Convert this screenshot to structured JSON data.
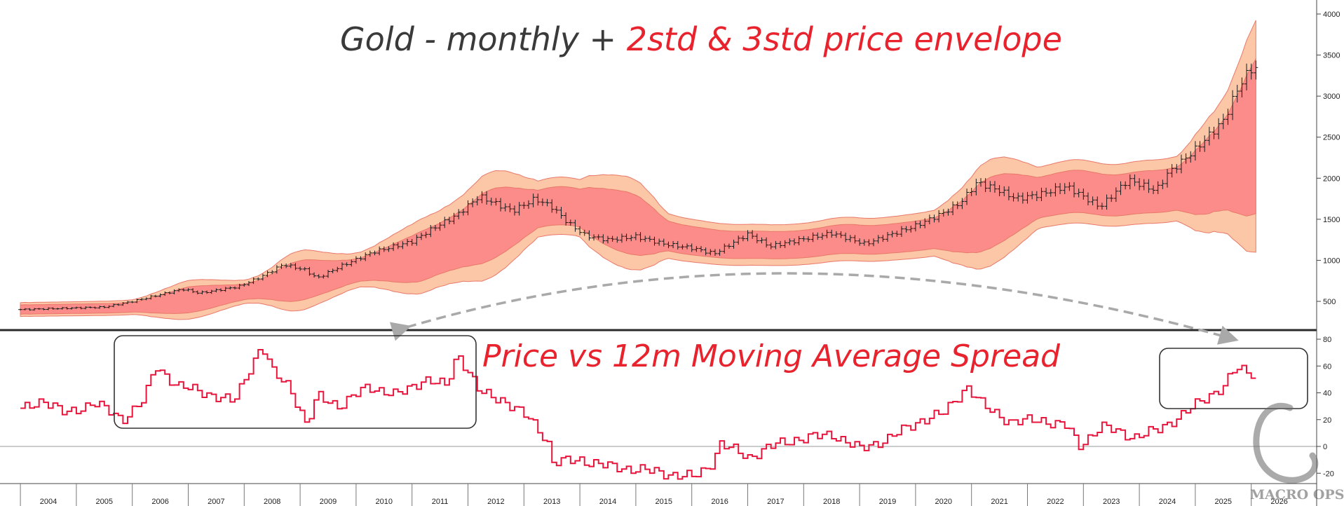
{
  "top_title": {
    "part1": "Gold - monthly + ",
    "part2": "2std & 3std price envelope"
  },
  "bottom_title": "Price vs 12m Moving Average Spread",
  "watermark": "MACRO OPS",
  "colors": {
    "title_dark": "#3a3a3a",
    "title_red": "#e8232e",
    "band_3std": "#fcc7a6",
    "band_2std": "#fb8c89",
    "band_edge": "#e9786a",
    "price_bars": "#1a1a1a",
    "spread_line": "#e8143c",
    "boxes": "#333333",
    "arrow": "#a9a9a9"
  },
  "chart_data": [
    {
      "type": "line",
      "subtype": "ohlc-monthly-with-envelopes",
      "title": "Gold - monthly + 2std & 3std price envelope",
      "x_axis_years": [
        "2004",
        "2005",
        "2006",
        "2007",
        "2008",
        "2009",
        "2010",
        "2011",
        "2012",
        "2013",
        "2014",
        "2015",
        "2016",
        "2017",
        "2018",
        "2019",
        "2020",
        "2021",
        "2022",
        "2023",
        "2024",
        "2025",
        "2026"
      ],
      "y_ticks": [
        500,
        1000,
        1500,
        2000,
        2500,
        3000,
        3500,
        4000
      ],
      "ylim": [
        200,
        4100
      ],
      "grid": false,
      "price_keypoints": [
        {
          "x": 2003.5,
          "y": 400
        },
        {
          "x": 2005.0,
          "y": 430
        },
        {
          "x": 2005.5,
          "y": 500
        },
        {
          "x": 2006.4,
          "y": 650
        },
        {
          "x": 2006.7,
          "y": 600
        },
        {
          "x": 2007.4,
          "y": 680
        },
        {
          "x": 2007.8,
          "y": 800
        },
        {
          "x": 2008.2,
          "y": 950
        },
        {
          "x": 2008.6,
          "y": 880
        },
        {
          "x": 2008.8,
          "y": 780
        },
        {
          "x": 2009.2,
          "y": 920
        },
        {
          "x": 2009.8,
          "y": 1100
        },
        {
          "x": 2010.5,
          "y": 1230
        },
        {
          "x": 2010.9,
          "y": 1400
        },
        {
          "x": 2011.3,
          "y": 1550
        },
        {
          "x": 2011.7,
          "y": 1780
        },
        {
          "x": 2012.3,
          "y": 1600
        },
        {
          "x": 2012.7,
          "y": 1750
        },
        {
          "x": 2013.0,
          "y": 1650
        },
        {
          "x": 2013.3,
          "y": 1450
        },
        {
          "x": 2013.6,
          "y": 1300
        },
        {
          "x": 2014.0,
          "y": 1250
        },
        {
          "x": 2014.5,
          "y": 1290
        },
        {
          "x": 2015.0,
          "y": 1200
        },
        {
          "x": 2015.5,
          "y": 1150
        },
        {
          "x": 2015.9,
          "y": 1080
        },
        {
          "x": 2016.5,
          "y": 1320
        },
        {
          "x": 2016.9,
          "y": 1170
        },
        {
          "x": 2017.5,
          "y": 1260
        },
        {
          "x": 2018.0,
          "y": 1330
        },
        {
          "x": 2018.6,
          "y": 1200
        },
        {
          "x": 2019.0,
          "y": 1300
        },
        {
          "x": 2019.5,
          "y": 1420
        },
        {
          "x": 2020.0,
          "y": 1580
        },
        {
          "x": 2020.3,
          "y": 1700
        },
        {
          "x": 2020.6,
          "y": 1950
        },
        {
          "x": 2021.0,
          "y": 1850
        },
        {
          "x": 2021.3,
          "y": 1750
        },
        {
          "x": 2021.7,
          "y": 1800
        },
        {
          "x": 2022.2,
          "y": 1900
        },
        {
          "x": 2022.8,
          "y": 1650
        },
        {
          "x": 2023.3,
          "y": 1980
        },
        {
          "x": 2023.8,
          "y": 1850
        },
        {
          "x": 2024.0,
          "y": 2050
        },
        {
          "x": 2024.5,
          "y": 2350
        },
        {
          "x": 2025.0,
          "y": 2700
        },
        {
          "x": 2025.3,
          "y": 3150
        },
        {
          "x": 2025.5,
          "y": 3330
        },
        {
          "x": 2025.6,
          "y": 3350
        }
      ]
    },
    {
      "type": "line",
      "title": "Price vs 12m Moving Average Spread",
      "y_ticks": [
        -20,
        0,
        20,
        40,
        60,
        80
      ],
      "ylim": [
        -25,
        83
      ],
      "grid": false,
      "reference_line": 0,
      "spread_keypoints": [
        {
          "x": 2003.5,
          "y": 27
        },
        {
          "x": 2003.9,
          "y": 35
        },
        {
          "x": 2004.3,
          "y": 24
        },
        {
          "x": 2004.8,
          "y": 33
        },
        {
          "x": 2005.3,
          "y": 20
        },
        {
          "x": 2005.7,
          "y": 35
        },
        {
          "x": 2005.9,
          "y": 60
        },
        {
          "x": 2006.3,
          "y": 45
        },
        {
          "x": 2006.8,
          "y": 40
        },
        {
          "x": 2007.3,
          "y": 33
        },
        {
          "x": 2007.6,
          "y": 60
        },
        {
          "x": 2007.8,
          "y": 75
        },
        {
          "x": 2008.0,
          "y": 55
        },
        {
          "x": 2008.3,
          "y": 45
        },
        {
          "x": 2008.6,
          "y": 15
        },
        {
          "x": 2008.8,
          "y": 38
        },
        {
          "x": 2009.2,
          "y": 30
        },
        {
          "x": 2009.7,
          "y": 45
        },
        {
          "x": 2010.2,
          "y": 38
        },
        {
          "x": 2010.7,
          "y": 50
        },
        {
          "x": 2011.1,
          "y": 45
        },
        {
          "x": 2011.3,
          "y": 70
        },
        {
          "x": 2011.7,
          "y": 40
        },
        {
          "x": 2012.1,
          "y": 35
        },
        {
          "x": 2012.6,
          "y": 20
        },
        {
          "x": 2012.9,
          "y": 5
        },
        {
          "x": 2013.0,
          "y": -12
        },
        {
          "x": 2013.5,
          "y": -10
        },
        {
          "x": 2014.0,
          "y": -15
        },
        {
          "x": 2014.5,
          "y": -17
        },
        {
          "x": 2015.0,
          "y": -20
        },
        {
          "x": 2015.5,
          "y": -23
        },
        {
          "x": 2015.8,
          "y": -15
        },
        {
          "x": 2016.0,
          "y": 2
        },
        {
          "x": 2016.5,
          "y": -8
        },
        {
          "x": 2016.9,
          "y": 0
        },
        {
          "x": 2017.3,
          "y": 5
        },
        {
          "x": 2018.0,
          "y": 9
        },
        {
          "x": 2018.5,
          "y": -2
        },
        {
          "x": 2019.0,
          "y": 6
        },
        {
          "x": 2019.6,
          "y": 20
        },
        {
          "x": 2020.0,
          "y": 25
        },
        {
          "x": 2020.4,
          "y": 45
        },
        {
          "x": 2020.7,
          "y": 30
        },
        {
          "x": 2021.2,
          "y": 18
        },
        {
          "x": 2021.7,
          "y": 20
        },
        {
          "x": 2022.2,
          "y": 15
        },
        {
          "x": 2022.4,
          "y": 0
        },
        {
          "x": 2022.8,
          "y": 15
        },
        {
          "x": 2023.4,
          "y": 7
        },
        {
          "x": 2023.8,
          "y": 12
        },
        {
          "x": 2024.3,
          "y": 25
        },
        {
          "x": 2024.8,
          "y": 40
        },
        {
          "x": 2025.0,
          "y": 45
        },
        {
          "x": 2025.2,
          "y": 58
        },
        {
          "x": 2025.5,
          "y": 55
        }
      ]
    }
  ]
}
